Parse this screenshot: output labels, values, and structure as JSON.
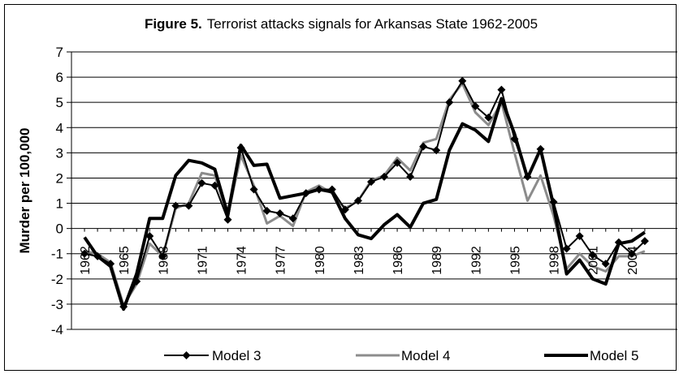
{
  "chart_data": {
    "type": "line",
    "title_bold": "Figure 5.",
    "title": "Terrorist attacks signals for Arkansas State 1962-2005",
    "xlabel": "",
    "ylabel": "Murder per 100,000",
    "ylim": [
      -4,
      7
    ],
    "yticks": [
      -4,
      -3,
      -2,
      -1,
      0,
      1,
      2,
      3,
      4,
      5,
      6,
      7
    ],
    "x": [
      1962,
      1963,
      1964,
      1965,
      1966,
      1967,
      1968,
      1969,
      1970,
      1971,
      1972,
      1973,
      1974,
      1975,
      1976,
      1977,
      1978,
      1979,
      1980,
      1981,
      1982,
      1983,
      1984,
      1985,
      1986,
      1987,
      1988,
      1989,
      1990,
      1991,
      1992,
      1993,
      1994,
      1995,
      1996,
      1997,
      1998,
      1999,
      2000,
      2001,
      2002,
      2003,
      2004,
      2005
    ],
    "xtick_labels": [
      "1962",
      "1965",
      "1968",
      "1971",
      "1974",
      "1977",
      "1980",
      "1983",
      "1986",
      "1989",
      "1992",
      "1995",
      "1998",
      "2001",
      "2004"
    ],
    "xtick_years": [
      1962,
      1965,
      1968,
      1971,
      1974,
      1977,
      1980,
      1983,
      1986,
      1989,
      1992,
      1995,
      1998,
      2001,
      2004
    ],
    "grid": "horizontal",
    "legend_position": "bottom",
    "series": [
      {
        "name": "Model 3",
        "color": "#000000",
        "marker": "diamond",
        "values": [
          -1.0,
          -1.1,
          -1.4,
          -3.1,
          -2.1,
          -0.3,
          -1.1,
          0.9,
          0.9,
          1.8,
          1.7,
          0.35,
          3.2,
          1.55,
          0.7,
          0.6,
          0.4,
          1.4,
          1.55,
          1.55,
          0.75,
          1.1,
          1.85,
          2.05,
          2.6,
          2.05,
          3.25,
          3.1,
          5.0,
          5.85,
          4.85,
          4.4,
          5.5,
          3.55,
          2.05,
          3.15,
          1.05,
          -0.8,
          -0.3,
          -1.05,
          -1.4,
          -0.55,
          -1.0,
          -0.5
        ]
      },
      {
        "name": "Model 4",
        "color": "#8c8c8c",
        "marker": "none",
        "values": [
          -0.9,
          -1.0,
          -1.35,
          -3.05,
          -2.2,
          -0.6,
          -1.1,
          0.8,
          1.0,
          2.2,
          2.1,
          0.5,
          2.9,
          1.7,
          0.2,
          0.5,
          0.1,
          1.45,
          1.7,
          1.4,
          0.8,
          1.1,
          1.9,
          2.1,
          2.8,
          2.3,
          3.4,
          3.55,
          5.1,
          5.75,
          4.6,
          4.1,
          5.0,
          3.0,
          1.1,
          2.1,
          0.5,
          -1.6,
          -1.0,
          -1.5,
          -1.7,
          -1.1,
          -1.1,
          -0.9
        ]
      },
      {
        "name": "Model 5",
        "color": "#000000",
        "marker": "none",
        "values": [
          -0.35,
          -1.1,
          -1.5,
          -3.2,
          -1.8,
          0.4,
          0.4,
          2.1,
          2.7,
          2.6,
          2.35,
          0.55,
          3.3,
          2.5,
          2.55,
          1.2,
          1.3,
          1.4,
          1.55,
          1.45,
          0.4,
          -0.25,
          -0.4,
          0.15,
          0.55,
          0.05,
          1.0,
          1.15,
          3.1,
          4.15,
          3.9,
          3.45,
          5.15,
          3.75,
          2.0,
          3.15,
          0.9,
          -1.8,
          -1.25,
          -2.0,
          -2.2,
          -0.6,
          -0.5,
          -0.15
        ]
      }
    ]
  }
}
